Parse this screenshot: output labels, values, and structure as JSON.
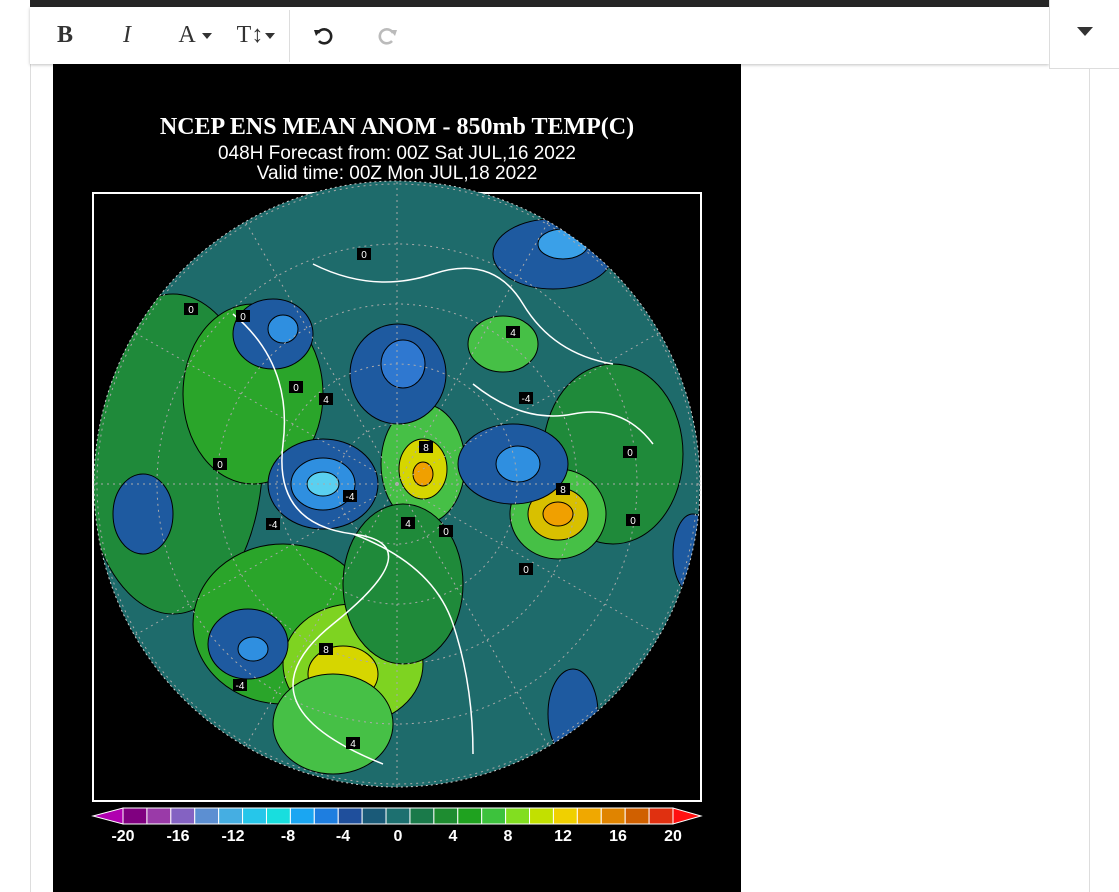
{
  "toolbar": {
    "bold": "B",
    "italic": "I",
    "font_color": "A",
    "text_size": "T↕"
  },
  "image": {
    "title": "NCEP ENS MEAN ANOM - 850mb TEMP(C)",
    "subtitle": "048H Forecast from: 00Z Sat JUL,16 2022",
    "valid_time": "Valid time: 00Z Mon JUL,18 2022",
    "contour_labels": [
      "0",
      "-4",
      "0",
      "0",
      "4",
      "0",
      "-4",
      "8",
      "-4",
      "4",
      "8",
      "0",
      "4",
      "0",
      "-4",
      "8",
      "4",
      "0",
      "0",
      "0"
    ],
    "colorbar_labels": [
      -20,
      -16,
      -12,
      -8,
      -4,
      0,
      4,
      8,
      12,
      16,
      20
    ]
  }
}
